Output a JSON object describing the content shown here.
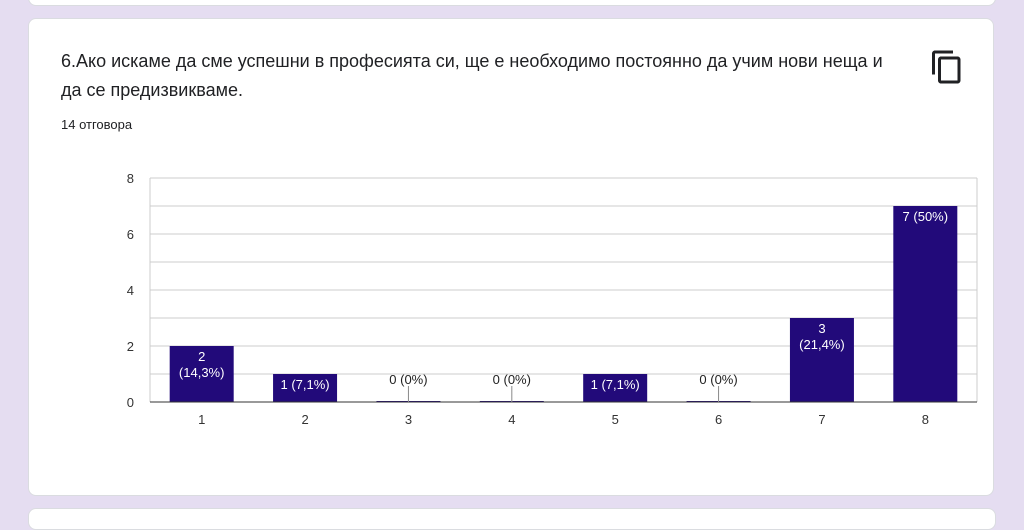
{
  "question": {
    "title": "6.Ако искаме да сме успешни в професията си, ще е необходимо постоянно да учим нови неща и да се предизвикваме.",
    "responses": "14 отговора",
    "copy_icon": "copy-icon"
  },
  "colors": {
    "bar": "#220a7a",
    "grid": "#cccccc",
    "axis": "#333333",
    "label_inside": "#ffffff",
    "label_outside": "#222222"
  },
  "chart_data": {
    "type": "bar",
    "categories": [
      "1",
      "2",
      "3",
      "4",
      "5",
      "6",
      "7",
      "8"
    ],
    "values": [
      2,
      1,
      0,
      0,
      1,
      0,
      3,
      7
    ],
    "data_labels": [
      [
        "2",
        "(14,3%)"
      ],
      [
        "1 (7,1%)"
      ],
      [
        "0 (0%)"
      ],
      [
        "0 (0%)"
      ],
      [
        "1 (7,1%)"
      ],
      [
        "0 (0%)"
      ],
      [
        "3",
        "(21,4%)"
      ],
      [
        "7 (50%)"
      ]
    ],
    "yticks": [
      0,
      2,
      4,
      6,
      8
    ],
    "ylim": [
      0,
      8
    ],
    "grid": true,
    "legend": "none"
  }
}
